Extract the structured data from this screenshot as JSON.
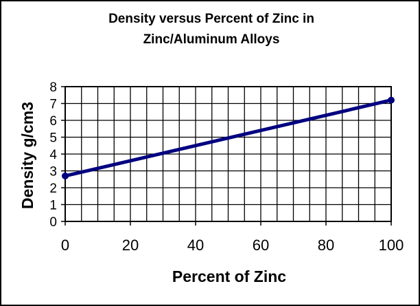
{
  "chart_data": {
    "type": "line",
    "title_lines": [
      "Density versus Percent of Zinc in",
      "Zinc/Aluminum Alloys"
    ],
    "xlabel": "Percent of Zinc",
    "ylabel": "Density g/cm3",
    "xlim": [
      0,
      100
    ],
    "ylim": [
      0,
      8
    ],
    "x_ticks": [
      0,
      20,
      40,
      60,
      80,
      100
    ],
    "y_ticks": [
      0,
      1,
      2,
      3,
      4,
      5,
      6,
      7,
      8
    ],
    "grid": true,
    "legend": "none",
    "series": [
      {
        "color": "#000080",
        "points": [
          {
            "x": 0,
            "y": 2.7
          },
          {
            "x": 100,
            "y": 7.2
          }
        ]
      }
    ]
  }
}
